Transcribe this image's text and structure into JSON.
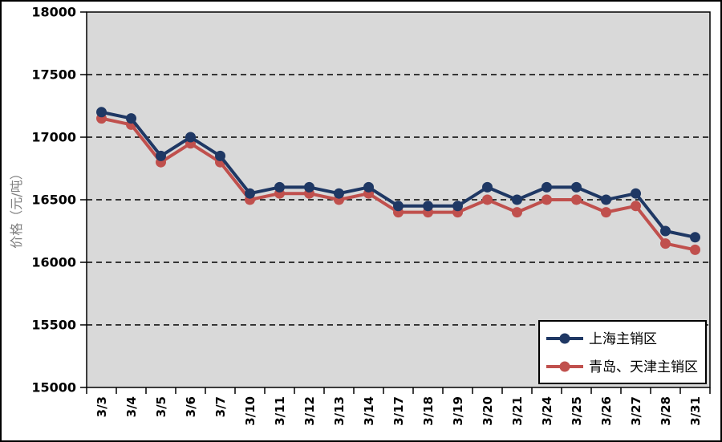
{
  "chart_data": {
    "type": "line",
    "title": "",
    "xlabel": "",
    "ylabel": "价格（元/吨）",
    "ylim": [
      15000,
      18000
    ],
    "ytick_step": 500,
    "ytick_labels": [
      "15000",
      "15500",
      "16000",
      "16500",
      "17000",
      "17500",
      "18000"
    ],
    "grid": "horizontal-dashed",
    "legend_position": "bottom-right",
    "categories": [
      "3/3",
      "3/4",
      "3/5",
      "3/6",
      "3/7",
      "3/10",
      "3/11",
      "3/12",
      "3/13",
      "3/14",
      "3/17",
      "3/18",
      "3/19",
      "3/20",
      "3/21",
      "3/24",
      "3/25",
      "3/26",
      "3/27",
      "3/28",
      "3/31"
    ],
    "series": [
      {
        "name": "上海主销区",
        "color": "#1F3864",
        "marker": "circle",
        "values": [
          17200,
          17150,
          16850,
          17000,
          16850,
          16550,
          16600,
          16600,
          16550,
          16600,
          16450,
          16450,
          16450,
          16600,
          16500,
          16600,
          16600,
          16500,
          16550,
          16250,
          16200
        ]
      },
      {
        "name": "青岛、天津主销区",
        "color": "#C0504D",
        "marker": "circle",
        "values": [
          17150,
          17100,
          16800,
          16950,
          16800,
          16500,
          16550,
          16550,
          16500,
          16550,
          16400,
          16400,
          16400,
          16500,
          16400,
          16500,
          16500,
          16400,
          16450,
          16150,
          16100
        ]
      }
    ],
    "colors": {
      "plot_bg": "#D9D9D9",
      "outer_bg": "#FFFFFF",
      "axis": "#000000",
      "gridline": "#000000",
      "ylabel_color": "#7F7F7F",
      "tick_label": "#000000",
      "figure_border": "#000000",
      "legend_bg": "#FFFFFF",
      "legend_border": "#000000"
    }
  }
}
